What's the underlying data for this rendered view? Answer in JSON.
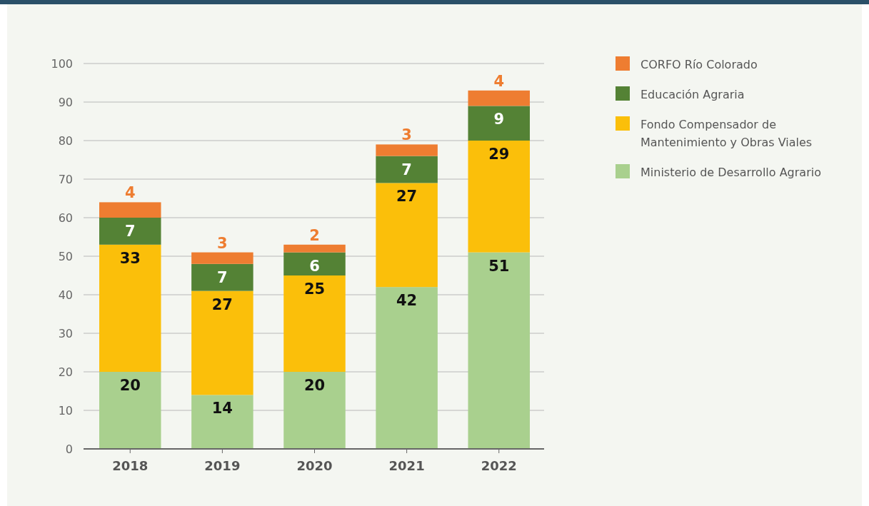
{
  "chart_data": {
    "type": "bar",
    "stacked": true,
    "categories": [
      "2018",
      "2019",
      "2020",
      "2021",
      "2022"
    ],
    "series": [
      {
        "name": "Ministerio de Desarrollo Agrario",
        "color": "#a9d08e",
        "values": [
          20,
          14,
          20,
          42,
          51
        ]
      },
      {
        "name": "Fondo Compensador de Mantenimiento y Obras Viales",
        "color": "#fbbf0a",
        "values": [
          33,
          27,
          25,
          27,
          29
        ]
      },
      {
        "name": "Educación Agraria",
        "color": "#548235",
        "values": [
          7,
          7,
          6,
          7,
          9
        ]
      },
      {
        "name": "CORFO Río Colorado",
        "color": "#ee7d31",
        "values": [
          4,
          3,
          2,
          3,
          4
        ]
      }
    ],
    "ylim": [
      0,
      100
    ],
    "yticks": [
      0,
      10,
      20,
      30,
      40,
      50,
      60,
      70,
      80,
      90,
      100
    ],
    "grid": "y",
    "legend": "right",
    "data_labels": true
  }
}
